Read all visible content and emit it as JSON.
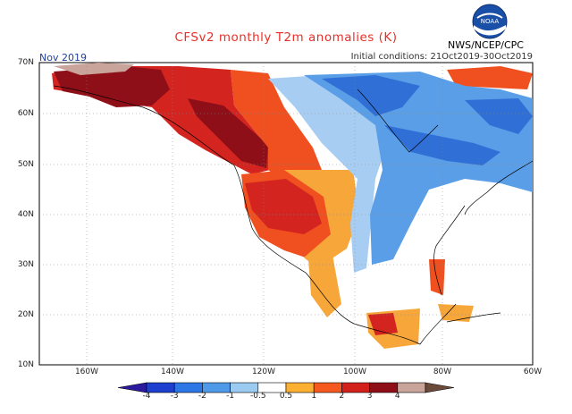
{
  "title": "CFSv2 monthly T2m anomalies (K)",
  "forecast_month": "Nov 2019",
  "organization": "NWS/NCEP/CPC",
  "initial_conditions": "Initial conditions: 21Oct2019-30Oct2019",
  "logo_label": "NOAA",
  "latitude_labels": [
    "70N",
    "60N",
    "50N",
    "40N",
    "30N",
    "20N",
    "10N"
  ],
  "longitude_labels": [
    "160W",
    "140W",
    "120W",
    "100W",
    "80W",
    "60W"
  ],
  "colorbar": {
    "labels": [
      "-4",
      "-3",
      "-2",
      "-1",
      "-0.5",
      "0.5",
      "1",
      "2",
      "3",
      "4"
    ],
    "colors": [
      "#2b1a9e",
      "#1c3fd0",
      "#2d76e6",
      "#4f9ae8",
      "#9ccbf2",
      "#ffffff",
      "#fbb032",
      "#f5591f",
      "#d2201b",
      "#8e0f17",
      "#c8a49a",
      "#6b4a3a"
    ]
  },
  "colors": {
    "warm_orange": "#f7a63a",
    "warm_red": "#f0501f",
    "hot_red": "#d42420",
    "very_hot": "#8e0f17",
    "cool_light": "#a7cdf3",
    "cool_mid": "#5a9ee8",
    "cool_dark": "#2f6fd6",
    "land_outline": "#000000"
  }
}
